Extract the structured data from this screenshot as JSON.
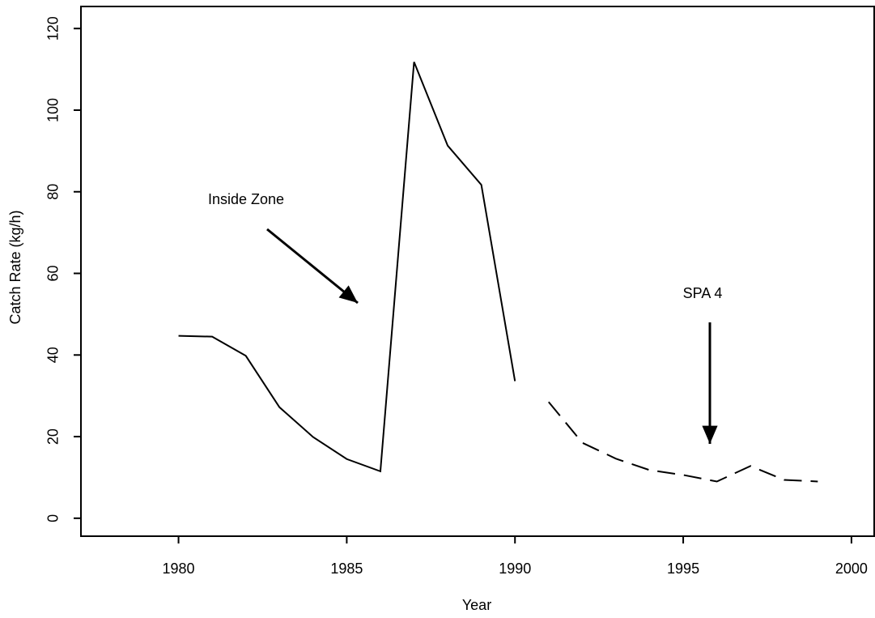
{
  "chart_data": {
    "type": "line",
    "x": [
      1980,
      1981,
      1982,
      1983,
      1984,
      1985,
      1986,
      1987,
      1988,
      1989,
      1990,
      1991,
      1992,
      1993,
      1994,
      1995,
      1996,
      1997,
      1998,
      1999
    ],
    "series": [
      {
        "color": "#000000",
        "dash": "solid",
        "values": [
          44.7,
          44.5,
          39.8,
          27.2,
          19.9,
          14.5,
          11.5,
          111.8,
          91.3,
          81.7,
          33.6,
          null,
          null,
          null,
          null,
          null,
          null,
          null,
          null,
          null
        ]
      },
      {
        "color": "#000000",
        "dash": "dashed",
        "values": [
          null,
          null,
          null,
          null,
          null,
          null,
          null,
          null,
          null,
          null,
          null,
          28.5,
          18.5,
          14.6,
          11.8,
          10.6,
          9.0,
          12.8,
          9.4,
          9.0
        ]
      }
    ],
    "xlabel": "Year",
    "ylabel": "Catch Rate (kg/h)",
    "xlim": [
      1977.1,
      2000.7
    ],
    "ylim": [
      -4.4,
      125.4
    ],
    "xticks": [
      1980,
      1985,
      1990,
      1995,
      2000
    ],
    "yticks": [
      0,
      20,
      40,
      60,
      80,
      100,
      120
    ],
    "grid": false,
    "annotations": [
      "Inside Zone",
      "SPA 4"
    ]
  }
}
